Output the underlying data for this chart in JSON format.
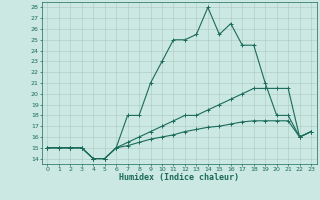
{
  "title": "",
  "xlabel": "Humidex (Indice chaleur)",
  "xlim": [
    -0.5,
    23.5
  ],
  "ylim": [
    13.5,
    28.5
  ],
  "yticks": [
    14,
    15,
    16,
    17,
    18,
    19,
    20,
    21,
    22,
    23,
    24,
    25,
    26,
    27,
    28
  ],
  "xticks": [
    0,
    1,
    2,
    3,
    4,
    5,
    6,
    7,
    8,
    9,
    10,
    11,
    12,
    13,
    14,
    15,
    16,
    17,
    18,
    19,
    20,
    21,
    22,
    23
  ],
  "bg_color": "#cce8e2",
  "line_color": "#1a6b5a",
  "grid_color": "#aac8c0",
  "line1": {
    "x": [
      0,
      1,
      2,
      3,
      4,
      5,
      6,
      7,
      8,
      9,
      10,
      11,
      12,
      13,
      14,
      15,
      16,
      17,
      18,
      19,
      20,
      21,
      22,
      23
    ],
    "y": [
      15,
      15,
      15,
      15,
      14,
      14,
      15,
      18,
      18,
      21,
      23,
      25,
      25,
      25.5,
      28,
      25.5,
      26.5,
      24.5,
      24.5,
      21,
      18,
      18,
      16,
      16.5
    ]
  },
  "line2": {
    "x": [
      0,
      1,
      2,
      3,
      4,
      5,
      6,
      7,
      8,
      9,
      10,
      11,
      12,
      13,
      14,
      15,
      16,
      17,
      18,
      19,
      20,
      21,
      22,
      23
    ],
    "y": [
      15,
      15,
      15,
      15,
      14,
      14,
      15,
      15.5,
      16,
      16.5,
      17,
      17.5,
      18,
      18,
      18.5,
      19,
      19.5,
      20,
      20.5,
      20.5,
      20.5,
      20.5,
      16,
      16.5
    ]
  },
  "line3": {
    "x": [
      0,
      1,
      2,
      3,
      4,
      5,
      6,
      7,
      8,
      9,
      10,
      11,
      12,
      13,
      14,
      15,
      16,
      17,
      18,
      19,
      20,
      21,
      22,
      23
    ],
    "y": [
      15,
      15,
      15,
      15,
      14,
      14,
      15,
      15.2,
      15.5,
      15.8,
      16,
      16.2,
      16.5,
      16.7,
      16.9,
      17,
      17.2,
      17.4,
      17.5,
      17.5,
      17.5,
      17.5,
      16,
      16.5
    ]
  }
}
